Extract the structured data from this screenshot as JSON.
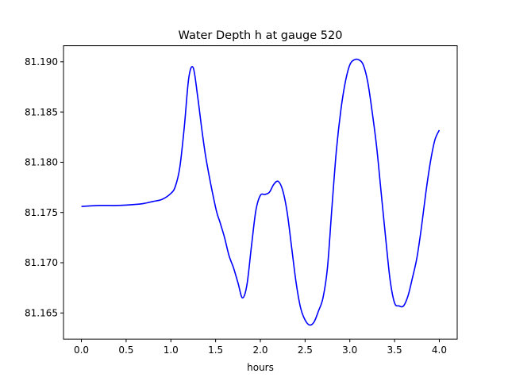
{
  "chart_data": {
    "type": "line",
    "title": "Water Depth h at gauge 520",
    "xlabel": "hours",
    "ylabel": "",
    "xlim": [
      -0.2,
      4.2
    ],
    "ylim": [
      81.1624,
      81.1916
    ],
    "xticks": [
      0.0,
      0.5,
      1.0,
      1.5,
      2.0,
      2.5,
      3.0,
      3.5,
      4.0
    ],
    "xtick_labels": [
      "0.0",
      "0.5",
      "1.0",
      "1.5",
      "2.0",
      "2.5",
      "3.0",
      "3.5",
      "4.0"
    ],
    "yticks": [
      81.165,
      81.17,
      81.175,
      81.18,
      81.185,
      81.19
    ],
    "ytick_labels": [
      "81.165",
      "81.170",
      "81.175",
      "81.180",
      "81.185",
      "81.190"
    ],
    "grid": false,
    "series": [
      {
        "color": "#0000ff",
        "x": [
          0.0,
          0.2,
          0.4,
          0.6,
          0.7,
          0.8,
          0.9,
          1.0,
          1.05,
          1.1,
          1.15,
          1.2,
          1.25,
          1.3,
          1.35,
          1.4,
          1.5,
          1.55,
          1.6,
          1.65,
          1.7,
          1.75,
          1.8,
          1.85,
          1.9,
          1.95,
          2.0,
          2.05,
          2.1,
          2.15,
          2.2,
          2.25,
          2.3,
          2.35,
          2.4,
          2.45,
          2.5,
          2.55,
          2.6,
          2.65,
          2.7,
          2.75,
          2.8,
          2.85,
          2.9,
          2.95,
          3.0,
          3.05,
          3.1,
          3.15,
          3.2,
          3.25,
          3.3,
          3.35,
          3.4,
          3.45,
          3.5,
          3.55,
          3.6,
          3.65,
          3.7,
          3.75,
          3.8,
          3.85,
          3.9,
          3.95,
          4.0
        ],
        "y": [
          81.1756,
          81.1757,
          81.1757,
          81.1758,
          81.1759,
          81.1761,
          81.1763,
          81.1769,
          81.1776,
          81.1795,
          81.1835,
          81.1884,
          81.1894,
          81.1865,
          81.183,
          81.18,
          81.1755,
          81.174,
          81.1725,
          81.1707,
          81.1695,
          81.168,
          81.1665,
          81.1678,
          81.1716,
          81.1752,
          81.1767,
          81.1768,
          81.177,
          81.1778,
          81.1781,
          81.1772,
          81.175,
          81.1715,
          81.168,
          81.1655,
          81.1643,
          81.1638,
          81.1641,
          81.1652,
          81.1665,
          81.1695,
          81.1755,
          81.1812,
          81.1852,
          81.188,
          81.1897,
          81.1902,
          81.1902,
          81.1897,
          81.188,
          81.185,
          81.1815,
          81.177,
          81.1725,
          81.1683,
          81.166,
          81.1657,
          81.1657,
          81.1667,
          81.1685,
          81.1705,
          81.1735,
          81.177,
          81.18,
          81.1822,
          81.1832
        ]
      }
    ]
  }
}
